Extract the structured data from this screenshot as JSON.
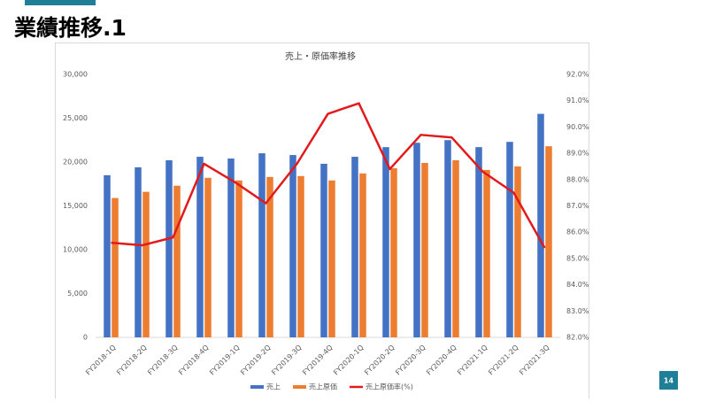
{
  "page": {
    "title": "業績推移.1",
    "page_number": "14"
  },
  "chart_data": {
    "type": "combo",
    "title": "売上・原価率推移",
    "categories": [
      "FY2018-1Q",
      "FY2018-2Q",
      "FY2018-3Q",
      "FY2018-4Q",
      "FY2019-1Q",
      "FY2019-2Q",
      "FY2019-3Q",
      "FY2019-4Q",
      "FY2020-1Q",
      "FY2020-2Q",
      "FY2020-3Q",
      "FY2020-4Q",
      "FY2021-1Q",
      "FY2021-2Q",
      "FY2021-3Q"
    ],
    "series": [
      {
        "name": "売上",
        "type": "bar",
        "color": "#4472c4",
        "values": [
          18500,
          19400,
          20200,
          20600,
          20400,
          21000,
          20800,
          19800,
          20600,
          21700,
          22200,
          22500,
          21700,
          22300,
          25500
        ]
      },
      {
        "name": "売上原価",
        "type": "bar",
        "color": "#ed7d31",
        "values": [
          15900,
          16600,
          17300,
          18200,
          17900,
          18300,
          18400,
          17900,
          18700,
          19300,
          19900,
          20200,
          19100,
          19500,
          21800
        ]
      },
      {
        "name": "売上原価率(%)",
        "type": "line",
        "axis": "y2",
        "color": "#e31a1c",
        "values": [
          85.6,
          85.5,
          85.8,
          88.6,
          87.9,
          87.1,
          88.6,
          90.5,
          90.9,
          88.4,
          89.7,
          89.6,
          88.3,
          87.5,
          85.4
        ]
      }
    ],
    "ylim": [
      0,
      30000
    ],
    "yticks": [
      0,
      {
        "value": 5000,
        "label": "5,000"
      },
      {
        "value": 10000,
        "label": "10,000"
      },
      {
        "value": 15000,
        "label": "15,000"
      },
      {
        "value": 20000,
        "label": "20,000"
      },
      {
        "value": 25000,
        "label": "25,000"
      },
      {
        "value": 30000,
        "label": "30,000"
      }
    ],
    "y2lim": [
      82,
      92
    ],
    "y2ticks": [
      {
        "value": 82,
        "label": "82.0%"
      },
      {
        "value": 83,
        "label": "83.0%"
      },
      {
        "value": 84,
        "label": "84.0%"
      },
      {
        "value": 85,
        "label": "85.0%"
      },
      {
        "value": 86,
        "label": "86.0%"
      },
      {
        "value": 87,
        "label": "87.0%"
      },
      {
        "value": 88,
        "label": "88.0%"
      },
      {
        "value": 89,
        "label": "89.0%"
      },
      {
        "value": 90,
        "label": "90.0%"
      },
      {
        "value": 91,
        "label": "91.0%"
      },
      {
        "value": 92,
        "label": "92.0%"
      }
    ],
    "grid": false
  }
}
